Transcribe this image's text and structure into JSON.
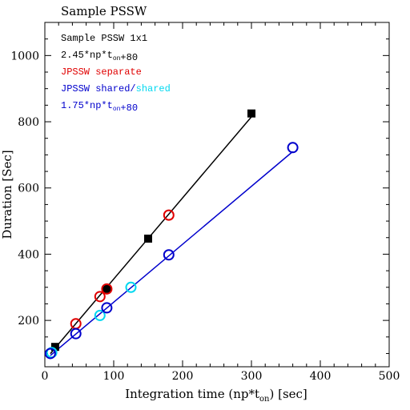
{
  "chart_data": {
    "type": "scatter",
    "title": "Sample PSSW",
    "xlabel_main": "Integration time (np*t",
    "xlabel_sub": "on",
    "xlabel_tail": ") [sec]",
    "ylabel": "Duration [Sec]",
    "xlim": [
      0,
      500
    ],
    "ylim": [
      60,
      1100
    ],
    "x_ticks": [
      0,
      100,
      200,
      300,
      400,
      500
    ],
    "y_ticks": [
      200,
      400,
      600,
      800,
      1000
    ],
    "legend": {
      "placement": "top-left",
      "lines": [
        {
          "parts": [
            {
              "text": "Sample PSSW 1x1",
              "color": "#000000"
            }
          ]
        },
        {
          "parts": [
            {
              "text": "2.45*np*t",
              "color": "#000000"
            },
            {
              "text": "on",
              "color": "#000000",
              "sub": true
            },
            {
              "text": "+80",
              "color": "#000000"
            }
          ]
        },
        {
          "parts": [
            {
              "text": "JPSSW separate",
              "color": "#e00000"
            }
          ]
        },
        {
          "parts": [
            {
              "text": "JPSSW shared/",
              "color": "#0000cc"
            },
            {
              "text": "shared",
              "color": "#00d8f0"
            }
          ]
        },
        {
          "parts": [
            {
              "text": "1.75*np*t",
              "color": "#0000cc"
            },
            {
              "text": "on",
              "color": "#0000cc",
              "sub": true
            },
            {
              "text": "+80",
              "color": "#0000cc"
            }
          ]
        }
      ]
    },
    "series": [
      {
        "marker": "square",
        "color": "#000000",
        "points": [
          [
            15,
            120
          ],
          [
            90,
            295
          ],
          [
            150,
            447
          ],
          [
            300,
            825
          ]
        ]
      },
      {
        "marker": "circle",
        "color": "#e00000",
        "points": [
          [
            45,
            190
          ],
          [
            80,
            272
          ],
          [
            90,
            295
          ],
          [
            180,
            518
          ]
        ]
      },
      {
        "marker": "circle",
        "color": "#00d8f0",
        "points": [
          [
            10,
            103
          ],
          [
            80,
            215
          ],
          [
            125,
            300
          ]
        ]
      },
      {
        "marker": "circle",
        "color": "#0000cc",
        "points": [
          [
            8,
            100
          ],
          [
            45,
            160
          ],
          [
            90,
            238
          ],
          [
            180,
            398
          ],
          [
            360,
            722
          ]
        ]
      }
    ],
    "fits": [
      {
        "color": "#000000",
        "slope": 2.45,
        "intercept": 80,
        "x_range": [
          8,
          300
        ]
      },
      {
        "color": "#0000cc",
        "slope": 1.75,
        "intercept": 80,
        "x_range": [
          8,
          360
        ]
      }
    ]
  }
}
